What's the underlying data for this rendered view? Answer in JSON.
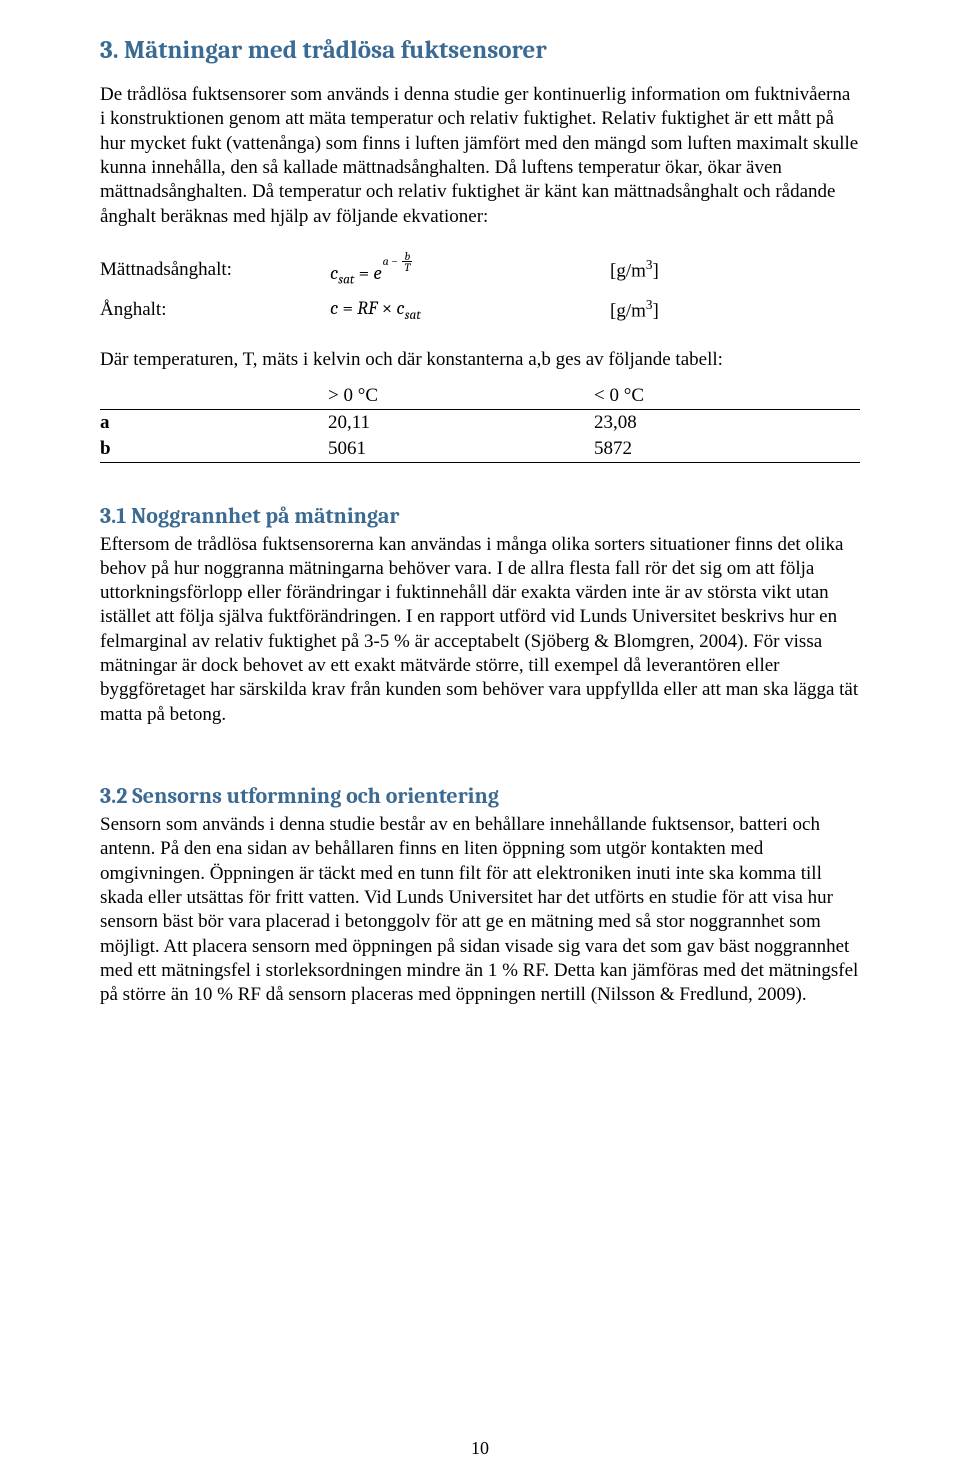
{
  "colors": {
    "heading": "#3b6a92",
    "text": "#000000",
    "background": "#ffffff",
    "rule": "#000000"
  },
  "typography": {
    "body_family": "Times New Roman",
    "heading_family": "Cambria",
    "body_size_pt": 14,
    "h1_size_pt": 19,
    "h2_size_pt": 17
  },
  "section3": {
    "title": "3. Mätningar med trådlösa fuktsensorer",
    "intro": "De trådlösa fuktsensorer som används i denna studie ger kontinuerlig information om fuktnivåerna i konstruktionen genom att mäta temperatur och relativ fuktighet. Relativ fuktighet är ett mått på hur mycket fukt (vattenånga) som finns i luften jämfört med den mängd som luften maximalt skulle kunna innehålla, den så kallade mättnadsånghalten. Då luftens temperatur ökar, ökar även mättnadsånghalten. Då temperatur och relativ fuktighet är känt kan mättnadsånghalt och rådande ånghalt beräknas med hjälp av följande ekvationer:",
    "eq1": {
      "label": "Mättnadsånghalt:",
      "unit_html": "[g/m³]"
    },
    "eq2": {
      "label": "Ånghalt:",
      "unit_html": "[g/m³]"
    },
    "constants_intro": "Där temperaturen, T, mäts i kelvin och där konstanterna a,b ges av följande tabell:",
    "table": {
      "columns": [
        "",
        "> 0 °C",
        "< 0 °C"
      ],
      "rows": [
        {
          "label": "a",
          "gt0": "20,11",
          "lt0": "23,08"
        },
        {
          "label": "b",
          "gt0": "5061",
          "lt0": "5872"
        }
      ],
      "col_widths_pct": [
        30,
        35,
        35
      ],
      "border_color": "#000000"
    }
  },
  "section31": {
    "title": "3.1 Noggrannhet på mätningar",
    "body": "Eftersom de trådlösa fuktsensorerna kan användas i många olika sorters situationer finns det olika behov på hur noggranna mätningarna behöver vara. I de allra flesta fall rör det sig om att följa uttorkningsförlopp eller förändringar i fuktinnehåll där exakta värden inte är av största vikt utan istället att följa själva fuktförändringen. I en rapport utförd vid Lunds Universitet beskrivs hur en felmarginal av relativ fuktighet på 3-5 % är acceptabelt (Sjöberg & Blomgren, 2004). För vissa mätningar är dock behovet av ett exakt mätvärde större, till exempel då leverantören eller byggföretaget har särskilda krav från kunden som behöver vara uppfyllda eller att man ska lägga tät matta på betong."
  },
  "section32": {
    "title": "3.2 Sensorns utformning och orientering",
    "body": "Sensorn som används i denna studie består av en behållare innehållande fuktsensor, batteri och antenn. På den ena sidan av behållaren finns en liten öppning som utgör kontakten med omgivningen. Öppningen är täckt med en tunn filt för att elektroniken inuti inte ska komma till skada eller utsättas för fritt vatten. Vid Lunds Universitet har det utförts en studie för att visa hur sensorn bäst bör vara placerad i betonggolv för att ge en mätning med så stor noggrannhet som möjligt. Att placera sensorn med öppningen på sidan visade sig vara det som gav bäst noggrannhet med ett mätningsfel i storleksordningen mindre än 1 % RF. Detta kan jämföras med det mätningsfel på större än 10 % RF då sensorn placeras med öppningen nertill (Nilsson & Fredlund, 2009)."
  },
  "page_number": "10"
}
